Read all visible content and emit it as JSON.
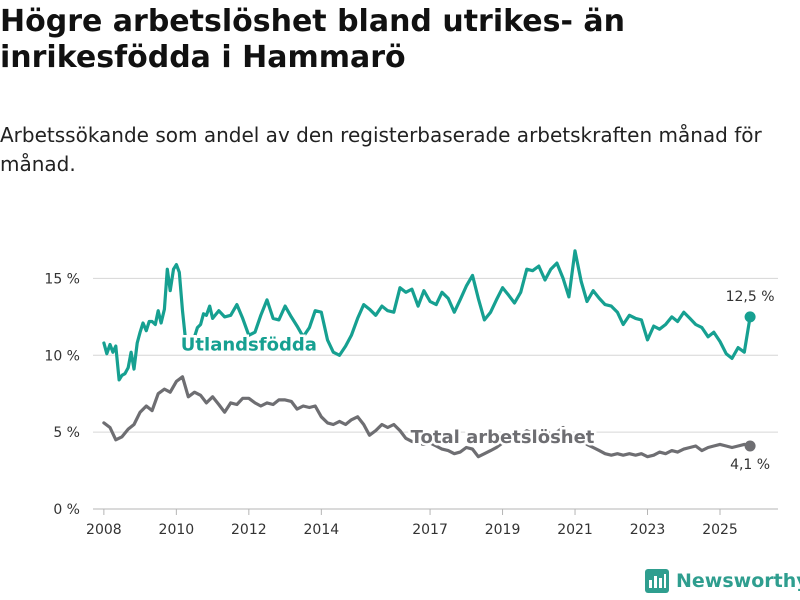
{
  "title": "Högre arbetslöshet bland utrikes- än inrikesfödda i Hammarö",
  "subtitle": "Arbetssökande som andel av den registerbaserade arbetskraften månad för månad.",
  "brand": {
    "name": "Newsworthy",
    "color": "#2f9e8f",
    "icon": "newsworthy-logo-icon"
  },
  "chart_data": {
    "type": "line",
    "title": "Högre arbetslöshet bland utrikes- än inrikesfödda i Hammarö",
    "xlabel": "",
    "ylabel": "",
    "x_ticks": [
      2008,
      2010,
      2012,
      2014,
      2017,
      2019,
      2021,
      2023,
      2025
    ],
    "x_range": [
      2007.7,
      2026.6
    ],
    "y_ticks": [
      0,
      5,
      10,
      15
    ],
    "y_tick_labels": [
      "0 %",
      "5 %",
      "10 %",
      "15 %"
    ],
    "ylim": [
      0,
      17.5
    ],
    "grid": true,
    "series": [
      {
        "name": "Utlandsfödda",
        "color": "#16a091",
        "end_label": "12,5 %",
        "x": [
          2008.0,
          2008.08,
          2008.17,
          2008.25,
          2008.33,
          2008.42,
          2008.5,
          2008.58,
          2008.67,
          2008.75,
          2008.83,
          2008.92,
          2009.0,
          2009.08,
          2009.17,
          2009.25,
          2009.33,
          2009.42,
          2009.5,
          2009.58,
          2009.67,
          2009.75,
          2009.83,
          2009.92,
          2010.0,
          2010.08,
          2010.17,
          2010.25,
          2010.33,
          2010.42,
          2010.5,
          2010.58,
          2010.67,
          2010.75,
          2010.83,
          2010.92,
          2011.0,
          2011.17,
          2011.33,
          2011.5,
          2011.67,
          2011.83,
          2012.0,
          2012.17,
          2012.33,
          2012.5,
          2012.67,
          2012.83,
          2013.0,
          2013.17,
          2013.33,
          2013.5,
          2013.67,
          2013.83,
          2014.0,
          2014.17,
          2014.33,
          2014.5,
          2014.67,
          2014.83,
          2015.0,
          2015.17,
          2015.33,
          2015.5,
          2015.67,
          2015.83,
          2016.0,
          2016.17,
          2016.33,
          2016.5,
          2016.67,
          2016.83,
          2017.0,
          2017.17,
          2017.33,
          2017.5,
          2017.67,
          2017.83,
          2018.0,
          2018.17,
          2018.33,
          2018.5,
          2018.67,
          2018.83,
          2019.0,
          2019.17,
          2019.33,
          2019.5,
          2019.67,
          2019.83,
          2020.0,
          2020.17,
          2020.33,
          2020.5,
          2020.67,
          2020.83,
          2021.0,
          2021.17,
          2021.33,
          2021.5,
          2021.67,
          2021.83,
          2022.0,
          2022.17,
          2022.33,
          2022.5,
          2022.67,
          2022.83,
          2023.0,
          2023.17,
          2023.33,
          2023.5,
          2023.67,
          2023.83,
          2024.0,
          2024.17,
          2024.33,
          2024.5,
          2024.67,
          2024.83,
          2025.0,
          2025.17,
          2025.33,
          2025.5,
          2025.67,
          2025.83
        ],
        "values": [
          10.8,
          10.1,
          10.7,
          10.2,
          10.6,
          8.4,
          8.7,
          8.8,
          9.2,
          10.2,
          9.1,
          10.8,
          11.5,
          12.1,
          11.6,
          12.2,
          12.2,
          12.0,
          12.9,
          12.1,
          13.0,
          15.6,
          14.2,
          15.6,
          15.9,
          15.4,
          12.9,
          11.1,
          10.3,
          10.8,
          11.2,
          11.8,
          12.0,
          12.7,
          12.6,
          13.2,
          12.4,
          12.9,
          12.5,
          12.6,
          13.3,
          12.4,
          11.3,
          11.5,
          12.6,
          13.6,
          12.4,
          12.3,
          13.2,
          12.5,
          11.9,
          11.2,
          11.8,
          12.9,
          12.8,
          11.0,
          10.2,
          10.0,
          10.6,
          11.3,
          12.4,
          13.3,
          13.0,
          12.6,
          13.2,
          12.9,
          12.8,
          14.4,
          14.1,
          14.3,
          13.2,
          14.2,
          13.5,
          13.3,
          14.1,
          13.7,
          12.8,
          13.6,
          14.5,
          15.2,
          13.7,
          12.3,
          12.8,
          13.6,
          14.4,
          13.9,
          13.4,
          14.1,
          15.6,
          15.5,
          15.8,
          14.9,
          15.6,
          16.0,
          15.0,
          13.8,
          16.8,
          14.8,
          13.5,
          14.2,
          13.7,
          13.3,
          13.2,
          12.8,
          12.0,
          12.6,
          12.4,
          12.3,
          11.0,
          11.9,
          11.7,
          12.0,
          12.5,
          12.2,
          12.8,
          12.4,
          12.0,
          11.8,
          11.2,
          11.5,
          10.9,
          10.1,
          9.8,
          10.5,
          10.2,
          12.5
        ],
        "line_label": "Utlandsfödda",
        "line_label_at": [
          2012.0,
          10.3
        ]
      },
      {
        "name": "Total arbetslöshet",
        "color": "#6e6e72",
        "end_label": "4,1 %",
        "x": [
          2008.0,
          2008.17,
          2008.33,
          2008.5,
          2008.67,
          2008.83,
          2009.0,
          2009.17,
          2009.33,
          2009.5,
          2009.67,
          2009.83,
          2010.0,
          2010.17,
          2010.33,
          2010.5,
          2010.67,
          2010.83,
          2011.0,
          2011.17,
          2011.33,
          2011.5,
          2011.67,
          2011.83,
          2012.0,
          2012.17,
          2012.33,
          2012.5,
          2012.67,
          2012.83,
          2013.0,
          2013.17,
          2013.33,
          2013.5,
          2013.67,
          2013.83,
          2014.0,
          2014.17,
          2014.33,
          2014.5,
          2014.67,
          2014.83,
          2015.0,
          2015.17,
          2015.33,
          2015.5,
          2015.67,
          2015.83,
          2016.0,
          2016.17,
          2016.33,
          2016.5,
          2016.67,
          2016.83,
          2017.0,
          2017.17,
          2017.33,
          2017.5,
          2017.67,
          2017.83,
          2018.0,
          2018.17,
          2018.33,
          2018.5,
          2018.67,
          2018.83,
          2019.0,
          2019.17,
          2019.33,
          2019.5,
          2019.67,
          2019.83,
          2020.0,
          2020.17,
          2020.33,
          2020.5,
          2020.67,
          2020.83,
          2021.0,
          2021.17,
          2021.33,
          2021.5,
          2021.67,
          2021.83,
          2022.0,
          2022.17,
          2022.33,
          2022.5,
          2022.67,
          2022.83,
          2023.0,
          2023.17,
          2023.33,
          2023.5,
          2023.67,
          2023.83,
          2024.0,
          2024.17,
          2024.33,
          2024.5,
          2024.67,
          2024.83,
          2025.0,
          2025.17,
          2025.33,
          2025.5,
          2025.67,
          2025.83
        ],
        "values": [
          5.6,
          5.3,
          4.5,
          4.7,
          5.2,
          5.5,
          6.3,
          6.7,
          6.4,
          7.5,
          7.8,
          7.6,
          8.3,
          8.6,
          7.3,
          7.6,
          7.4,
          6.9,
          7.3,
          6.8,
          6.3,
          6.9,
          6.8,
          7.2,
          7.2,
          6.9,
          6.7,
          6.9,
          6.8,
          7.1,
          7.1,
          7.0,
          6.5,
          6.7,
          6.6,
          6.7,
          6.0,
          5.6,
          5.5,
          5.7,
          5.5,
          5.8,
          6.0,
          5.5,
          4.8,
          5.1,
          5.5,
          5.3,
          5.5,
          5.1,
          4.6,
          4.4,
          4.3,
          4.2,
          4.3,
          4.1,
          3.9,
          3.8,
          3.6,
          3.7,
          4.0,
          3.9,
          3.4,
          3.6,
          3.8,
          4.0,
          4.3,
          4.4,
          4.6,
          4.8,
          5.1,
          4.9,
          5.0,
          5.2,
          4.8,
          5.0,
          5.3,
          4.9,
          4.7,
          4.5,
          4.2,
          4.0,
          3.8,
          3.6,
          3.5,
          3.6,
          3.5,
          3.6,
          3.5,
          3.6,
          3.4,
          3.5,
          3.7,
          3.6,
          3.8,
          3.7,
          3.9,
          4.0,
          4.1,
          3.8,
          4.0,
          4.1,
          4.2,
          4.1,
          4.0,
          4.1,
          4.2,
          4.1
        ],
        "line_label": "Total arbetslöshet",
        "line_label_at": [
          2019.0,
          4.3
        ]
      }
    ]
  }
}
